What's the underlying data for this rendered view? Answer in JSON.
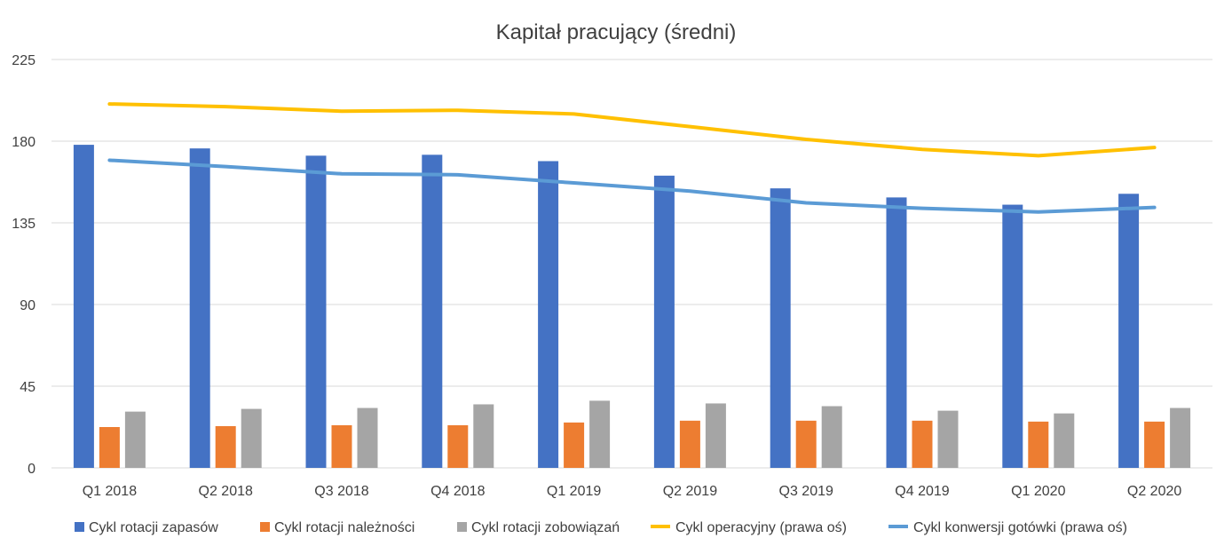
{
  "chart_data": {
    "type": "bar",
    "title": "Kapitał pracujący (średni)",
    "xlabel": "",
    "ylabel": "",
    "ylim": [
      0,
      225
    ],
    "yticks": [
      0,
      45,
      90,
      135,
      180,
      225
    ],
    "grid": true,
    "legend_position": "bottom",
    "categories": [
      "Q1 2018",
      "Q2 2018",
      "Q3 2018",
      "Q4 2018",
      "Q1 2019",
      "Q2 2019",
      "Q3 2019",
      "Q4 2019",
      "Q1 2020",
      "Q2 2020"
    ],
    "series": [
      {
        "name": "Cykl rotacji zapasów",
        "kind": "bar",
        "color": "#4472c4",
        "values": [
          178,
          176,
          172,
          172.5,
          169,
          161,
          154,
          149,
          145,
          151
        ]
      },
      {
        "name": "Cykl rotacji należności",
        "kind": "bar",
        "color": "#ed7d31",
        "values": [
          22.5,
          23,
          23.5,
          23.5,
          25,
          26,
          26,
          26,
          25.5,
          25.5
        ]
      },
      {
        "name": "Cykl rotacji zobowiązań",
        "kind": "bar",
        "color": "#a5a5a5",
        "values": [
          31,
          32.5,
          33,
          35,
          37,
          35.5,
          34,
          31.5,
          30,
          33
        ]
      },
      {
        "name": "Cykl operacyjny (prawa oś)",
        "kind": "line",
        "color": "#ffc000",
        "values": [
          200.5,
          199,
          196.5,
          197,
          195,
          188,
          181,
          175.5,
          172,
          176.5
        ]
      },
      {
        "name": "Cykl konwersji gotówki (prawa oś)",
        "kind": "line",
        "color": "#5b9bd5",
        "values": [
          169.5,
          166,
          162,
          161.5,
          157,
          152.5,
          146,
          143,
          141,
          143.5
        ]
      }
    ]
  }
}
